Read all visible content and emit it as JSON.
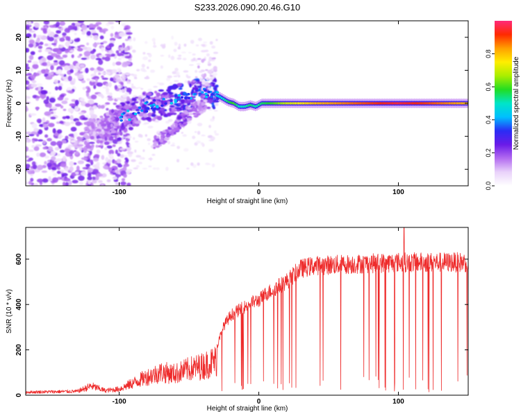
{
  "figure": {
    "title": "S233.2026.090.20.46.G10"
  },
  "colors": {
    "signal_line": "#ee2a2a",
    "noise_purple": "#7a1fe0",
    "noise_light": "#d9b9f2",
    "colorbar_stops": [
      "#ffffff",
      "#e9d2fa",
      "#b36bf0",
      "#6a1be8",
      "#2a2cf5",
      "#00bfff",
      "#00e5c8",
      "#22dd22",
      "#aaee00",
      "#ffee00",
      "#ffa000",
      "#ff2a00",
      "#ff2a7a"
    ]
  },
  "chart_data": [
    {
      "type": "heatmap",
      "name": "spectrogram",
      "xlabel": "Height of straight line (km)",
      "ylabel": "Frequency (Hz)",
      "xlim": [
        -167,
        150
      ],
      "ylim": [
        -25,
        25
      ],
      "x_ticks": [
        -100,
        0,
        100
      ],
      "x_tick_labels": [
        "-100",
        "0",
        "100"
      ],
      "y_ticks": [
        -20,
        -10,
        0,
        10,
        20
      ],
      "y_tick_labels": [
        "-20",
        "-10",
        "0",
        "10",
        "20"
      ],
      "colorbar": {
        "label": "Normalized spectral amplitude",
        "range": [
          0,
          1
        ],
        "ticks": [
          0,
          0.2,
          0.4,
          0.6,
          0.8
        ],
        "tick_labels": [
          "0.0",
          "0.2",
          "0.4",
          "0.6",
          "0.8"
        ]
      },
      "ridge": {
        "description": "dominant frequency track vs height",
        "x": [
          -122,
          -110,
          -100,
          -90,
          -80,
          -70,
          -60,
          -50,
          -40,
          -34,
          -28,
          -22,
          -18,
          -14,
          -10,
          -6,
          -2,
          2,
          10,
          20,
          40,
          60,
          80,
          100,
          120,
          150
        ],
        "y": [
          -10,
          -8,
          -5,
          -3,
          -1,
          0,
          1,
          2,
          3,
          3,
          2,
          0.5,
          0,
          -1,
          -1,
          -0.5,
          -1,
          0,
          0,
          0,
          0,
          0,
          0,
          0,
          0,
          0
        ],
        "amplitude": [
          0.15,
          0.2,
          0.25,
          0.3,
          0.35,
          0.35,
          0.4,
          0.4,
          0.45,
          0.45,
          0.45,
          0.55,
          0.6,
          0.5,
          0.5,
          0.55,
          0.5,
          0.55,
          0.6,
          0.7,
          0.8,
          0.85,
          0.9,
          0.95,
          0.9,
          0.8
        ]
      },
      "secondary_ridge": {
        "description": "weaker mirrored track",
        "x": [
          -75,
          -65,
          -55,
          -45,
          -38
        ],
        "y": [
          -12,
          -9,
          -5,
          -2,
          0
        ],
        "amplitude": [
          0.15,
          0.2,
          0.2,
          0.15,
          0.1
        ]
      },
      "noise_region": {
        "x_range": [
          -167,
          -100
        ],
        "amplitude_max": 0.2
      }
    },
    {
      "type": "line",
      "name": "snr",
      "xlabel": "Height of straight line (km)",
      "ylabel": "SNR (10 * v/v)",
      "xlim": [
        -167,
        150
      ],
      "ylim": [
        0,
        740
      ],
      "x_ticks": [
        -100,
        0,
        100
      ],
      "x_tick_labels": [
        "-100",
        "0",
        "100"
      ],
      "y_ticks": [
        0,
        200,
        400,
        600
      ],
      "y_tick_labels": [
        "0",
        "200",
        "400",
        "600"
      ],
      "series": [
        {
          "name": "SNR",
          "envelope_x": [
            -167,
            -130,
            -120,
            -110,
            -100,
            -90,
            -80,
            -70,
            -60,
            -50,
            -40,
            -30,
            -25,
            -20,
            -15,
            -10,
            -5,
            0,
            5,
            10,
            15,
            20,
            25,
            30,
            40,
            60,
            80,
            100,
            120,
            150
          ],
          "envelope_y": [
            20,
            25,
            60,
            30,
            40,
            80,
            120,
            150,
            140,
            170,
            190,
            230,
            330,
            380,
            400,
            420,
            440,
            450,
            480,
            500,
            520,
            540,
            570,
            600,
            615,
            620,
            625,
            630,
            630,
            630
          ],
          "peak": {
            "x": 104,
            "y": 745
          },
          "dropouts": "frequent drops toward 0 for x > -30"
        }
      ]
    }
  ]
}
